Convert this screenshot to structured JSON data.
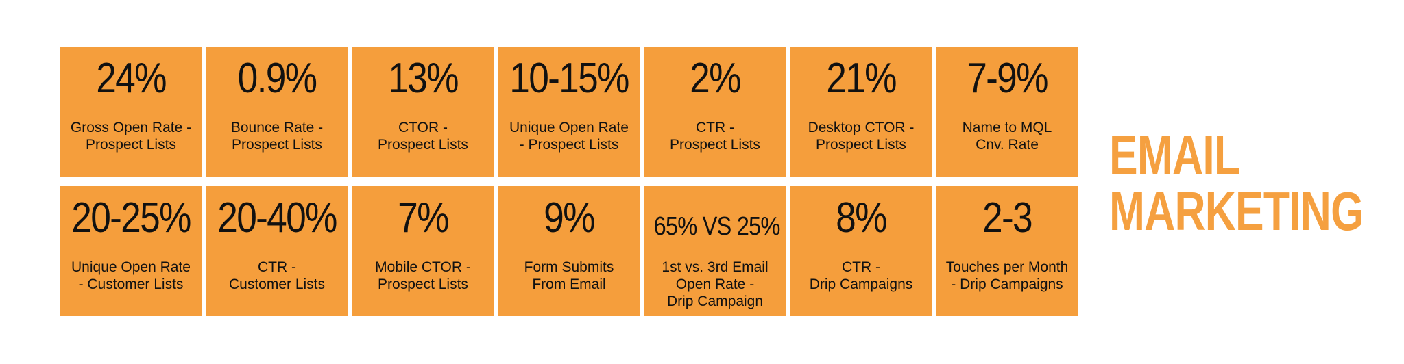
{
  "headline": {
    "line1": "EMAIL",
    "line2": "MARKETING"
  },
  "tiles": [
    {
      "value": "24%",
      "label": "Gross Open Rate -\nProspect Lists"
    },
    {
      "value": "0.9%",
      "label": "Bounce Rate -\nProspect Lists"
    },
    {
      "value": "13%",
      "label": "CTOR -\nProspect Lists"
    },
    {
      "value": "10-15%",
      "label": "Unique Open Rate\n- Prospect Lists"
    },
    {
      "value": "2%",
      "label": "CTR -\nProspect Lists"
    },
    {
      "value": "21%",
      "label": "Desktop CTOR  -\nProspect Lists"
    },
    {
      "value": "7-9%",
      "label": "Name to MQL\nCnv. Rate"
    },
    {
      "value": "20-25%",
      "label": "Unique Open Rate\n- Customer Lists"
    },
    {
      "value": "20-40%",
      "label": "CTR -\nCustomer Lists"
    },
    {
      "value": "7%",
      "label": "Mobile CTOR -\nProspect Lists"
    },
    {
      "value": "9%",
      "label": "Form Submits\nFrom Email"
    },
    {
      "value": "65% VS 25%",
      "label": "1st vs. 3rd Email\nOpen Rate -\nDrip Campaign"
    },
    {
      "value": "8%",
      "label": "CTR -\nDrip Campaigns"
    },
    {
      "value": "2-3",
      "label": "Touches per Month\n- Drip Campaigns"
    }
  ],
  "colors": {
    "tile_background": "#f59e3c",
    "headline": "#f5a040",
    "text": "#111111"
  }
}
